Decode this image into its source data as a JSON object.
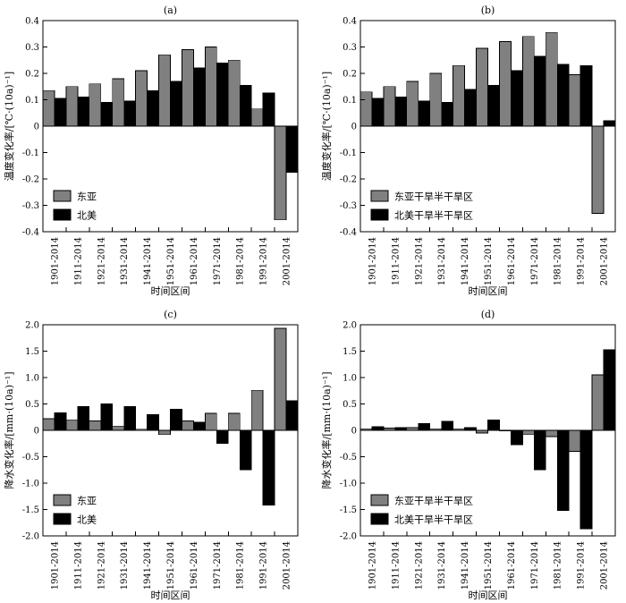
{
  "chart_data": [
    {
      "type": "bar",
      "title": "(a)",
      "xlabel": "时间区间",
      "ylabel": "温度变化率/[℃·(10a)⁻¹]",
      "categories": [
        "1901-2014",
        "1911-2014",
        "1921-2014",
        "1931-2014",
        "1941-2014",
        "1951-2014",
        "1961-2014",
        "1971-2014",
        "1981-2014",
        "1991-2014",
        "2001-2014"
      ],
      "ylim": [
        -0.4,
        0.4
      ],
      "yticks": [
        "0.4",
        "0.3",
        "0.2",
        "0.1",
        "0",
        "-0.1",
        "-0.2",
        "-0.3",
        "-0.4"
      ],
      "grid": false,
      "legend_position": "bottom-left",
      "series": [
        {
          "name": "东亚",
          "color": "#808080",
          "values": [
            0.135,
            0.15,
            0.16,
            0.18,
            0.21,
            0.27,
            0.29,
            0.3,
            0.25,
            0.065,
            -0.355
          ]
        },
        {
          "name": "北美",
          "color": "#000000",
          "values": [
            0.105,
            0.11,
            0.09,
            0.095,
            0.135,
            0.17,
            0.22,
            0.24,
            0.155,
            0.125,
            -0.175
          ]
        }
      ]
    },
    {
      "type": "bar",
      "title": "(b)",
      "xlabel": "时间区间",
      "ylabel": "温度变化率/[℃·(10a)⁻¹]",
      "categories": [
        "1901-2014",
        "1911-2014",
        "1921-2014",
        "1931-2014",
        "1941-2014",
        "1951-2014",
        "1961-2014",
        "1971-2014",
        "1981-2014",
        "1991-2014",
        "2001-2014"
      ],
      "ylim": [
        -0.4,
        0.4
      ],
      "yticks": [
        "0.4",
        "0.3",
        "0.2",
        "0.1",
        "0",
        "-0.1",
        "-0.2",
        "-0.3",
        "-0.4"
      ],
      "grid": false,
      "legend_position": "bottom-left",
      "series": [
        {
          "name": "东亚干旱半干旱区",
          "color": "#808080",
          "values": [
            0.13,
            0.15,
            0.17,
            0.2,
            0.23,
            0.295,
            0.32,
            0.34,
            0.355,
            0.195,
            -0.33
          ]
        },
        {
          "name": "北美干旱半干旱区",
          "color": "#000000",
          "values": [
            0.105,
            0.11,
            0.095,
            0.09,
            0.14,
            0.155,
            0.21,
            0.265,
            0.235,
            0.23,
            0.02
          ]
        }
      ]
    },
    {
      "type": "bar",
      "title": "(c)",
      "xlabel": "时间区间",
      "ylabel": "降水变化率/[mm·(10a)⁻¹]",
      "categories": [
        "1901-2014",
        "1911-2014",
        "1921-2014",
        "1931-2014",
        "1941-2014",
        "1951-2014",
        "1961-2014",
        "1971-2014",
        "1981-2014",
        "1991-2014",
        "2001-2014"
      ],
      "ylim": [
        -2.0,
        2.0
      ],
      "yticks": [
        "2.0",
        "1.5",
        "1.0",
        "0.5",
        "0",
        "-0.5",
        "-1.0",
        "-1.5",
        "-2.0"
      ],
      "grid": false,
      "legend_position": "bottom-left",
      "series": [
        {
          "name": "东亚",
          "color": "#808080",
          "values": [
            0.22,
            0.2,
            0.18,
            0.08,
            0.02,
            -0.08,
            0.18,
            0.32,
            0.32,
            0.76,
            1.93
          ]
        },
        {
          "name": "北美",
          "color": "#000000",
          "values": [
            0.33,
            0.45,
            0.5,
            0.45,
            0.3,
            0.4,
            0.15,
            -0.25,
            -0.75,
            -1.42,
            0.56
          ]
        }
      ]
    },
    {
      "type": "bar",
      "title": "(d)",
      "xlabel": "时间区间",
      "ylabel": "降水变化率/[mm·(10a)⁻¹]",
      "categories": [
        "1901-2014",
        "1911-2014",
        "1921-2014",
        "1931-2014",
        "1941-2014",
        "1951-2014",
        "1961-2014",
        "1971-2014",
        "1981-2014",
        "1991-2014",
        "2001-2014"
      ],
      "ylim": [
        -2.0,
        2.0
      ],
      "yticks": [
        "2.0",
        "1.5",
        "1.0",
        "0.5",
        "0",
        "-0.5",
        "-1.0",
        "-1.5",
        "-2.0"
      ],
      "grid": false,
      "legend_position": "bottom-left",
      "series": [
        {
          "name": "东亚干旱半干旱区",
          "color": "#808080",
          "values": [
            0.03,
            0.04,
            0.05,
            0.03,
            0.03,
            -0.05,
            0.0,
            -0.08,
            -0.12,
            -0.4,
            1.05
          ]
        },
        {
          "name": "北美干旱半干旱区",
          "color": "#000000",
          "values": [
            0.07,
            0.05,
            0.13,
            0.17,
            0.05,
            0.2,
            -0.27,
            -0.75,
            -1.52,
            -1.87,
            1.53
          ]
        }
      ]
    }
  ]
}
